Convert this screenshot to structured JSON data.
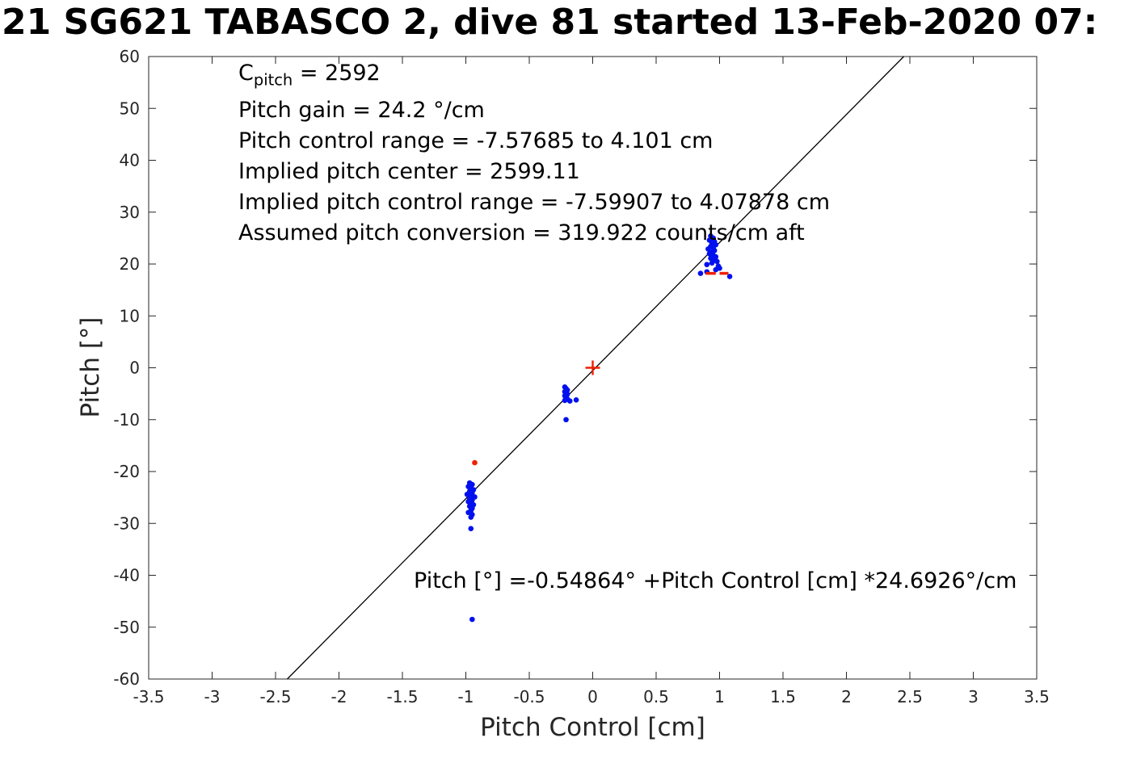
{
  "title": "21 SG621 TABASCO 2, dive 81 started 13-Feb-2020 07:",
  "annotations": {
    "c_base": "C",
    "c_sub": "pitch",
    "c_rest": " = 2592",
    "lines": [
      "Pitch gain = 24.2 °/cm",
      "Pitch control range = -7.57685 to 4.101 cm",
      "Implied pitch center = 2599.11",
      "Implied pitch control range = -7.59907 to 4.07878 cm",
      "Assumed pitch conversion = 319.922 counts/cm aft"
    ],
    "equation": "Pitch [°] =-0.54864° +Pitch Control [cm] *24.6926°/cm"
  },
  "chart_data": {
    "type": "scatter",
    "title": "21 SG621 TABASCO 2, dive 81 started 13-Feb-2020 07:",
    "xlabel": "Pitch Control [cm]",
    "ylabel": "Pitch [°]",
    "xlim": [
      -3.5,
      3.5
    ],
    "ylim": [
      -60,
      60
    ],
    "xticks": [
      -3.5,
      -3,
      -2.5,
      -2,
      -1.5,
      -1,
      -0.5,
      0,
      0.5,
      1,
      1.5,
      2,
      2.5,
      3,
      3.5
    ],
    "yticks": [
      -60,
      -50,
      -40,
      -30,
      -20,
      -10,
      0,
      10,
      20,
      30,
      40,
      50,
      60
    ],
    "grid": false,
    "legend": "none",
    "colors": {
      "points": "#0010ee",
      "markers": "#ee2000",
      "line": "#000000",
      "axis": "#262626"
    },
    "fit_line": {
      "slope": 24.6926,
      "intercept": -0.54864
    },
    "series": [
      {
        "name": "observed pitch vs pitch control (blue dots)",
        "marker": "dot",
        "color": "#0010ee",
        "points": [
          [
            -0.97,
            -22.2
          ],
          [
            -0.95,
            -22.5
          ],
          [
            -0.98,
            -22.9
          ],
          [
            -0.96,
            -23.2
          ],
          [
            -0.94,
            -23.5
          ],
          [
            -0.97,
            -23.8
          ],
          [
            -0.95,
            -24.1
          ],
          [
            -0.99,
            -24.4
          ],
          [
            -0.96,
            -24.7
          ],
          [
            -0.93,
            -24.9
          ],
          [
            -0.97,
            -25.2
          ],
          [
            -0.95,
            -25.5
          ],
          [
            -0.98,
            -25.8
          ],
          [
            -0.96,
            -26.1
          ],
          [
            -0.94,
            -26.4
          ],
          [
            -0.97,
            -26.7
          ],
          [
            -0.95,
            -27.1
          ],
          [
            -0.96,
            -27.5
          ],
          [
            -0.98,
            -27.9
          ],
          [
            -0.95,
            -28.3
          ],
          [
            -0.96,
            -28.8
          ],
          [
            -0.96,
            -31.0
          ],
          [
            -0.95,
            -48.5
          ],
          [
            -0.22,
            -3.7
          ],
          [
            -0.21,
            -4.0
          ],
          [
            -0.2,
            -4.3
          ],
          [
            -0.22,
            -4.6
          ],
          [
            -0.21,
            -4.9
          ],
          [
            -0.2,
            -5.1
          ],
          [
            -0.22,
            -5.4
          ],
          [
            -0.21,
            -5.7
          ],
          [
            -0.2,
            -6.0
          ],
          [
            -0.22,
            -6.3
          ],
          [
            -0.18,
            -6.4
          ],
          [
            -0.13,
            -6.2
          ],
          [
            -0.21,
            -10.0
          ],
          [
            0.93,
            25.4
          ],
          [
            0.95,
            25.0
          ],
          [
            0.92,
            24.6
          ],
          [
            0.96,
            24.3
          ],
          [
            0.94,
            24.0
          ],
          [
            0.97,
            23.7
          ],
          [
            0.93,
            23.4
          ],
          [
            0.95,
            23.1
          ],
          [
            0.91,
            22.9
          ],
          [
            0.96,
            22.6
          ],
          [
            0.94,
            22.3
          ],
          [
            0.92,
            22.0
          ],
          [
            0.95,
            21.7
          ],
          [
            0.97,
            21.4
          ],
          [
            0.93,
            21.1
          ],
          [
            0.96,
            20.8
          ],
          [
            0.98,
            20.5
          ],
          [
            0.94,
            20.2
          ],
          [
            0.9,
            19.9
          ],
          [
            0.99,
            19.6
          ],
          [
            1.0,
            19.2
          ],
          [
            0.97,
            18.9
          ],
          [
            0.9,
            18.5
          ],
          [
            0.85,
            18.2
          ],
          [
            1.08,
            17.6
          ]
        ]
      },
      {
        "name": "flagged pitch point (red dot)",
        "marker": "dot",
        "color": "#ee2000",
        "points": [
          [
            -0.93,
            -18.3
          ]
        ]
      }
    ],
    "red_dashes": {
      "y": 18.2,
      "segments": [
        [
          0.89,
          0.97
        ],
        [
          1.0,
          1.07
        ]
      ]
    },
    "center_marker": {
      "x": 0,
      "y": 0,
      "marker": "plus",
      "color": "#ee2000"
    }
  }
}
